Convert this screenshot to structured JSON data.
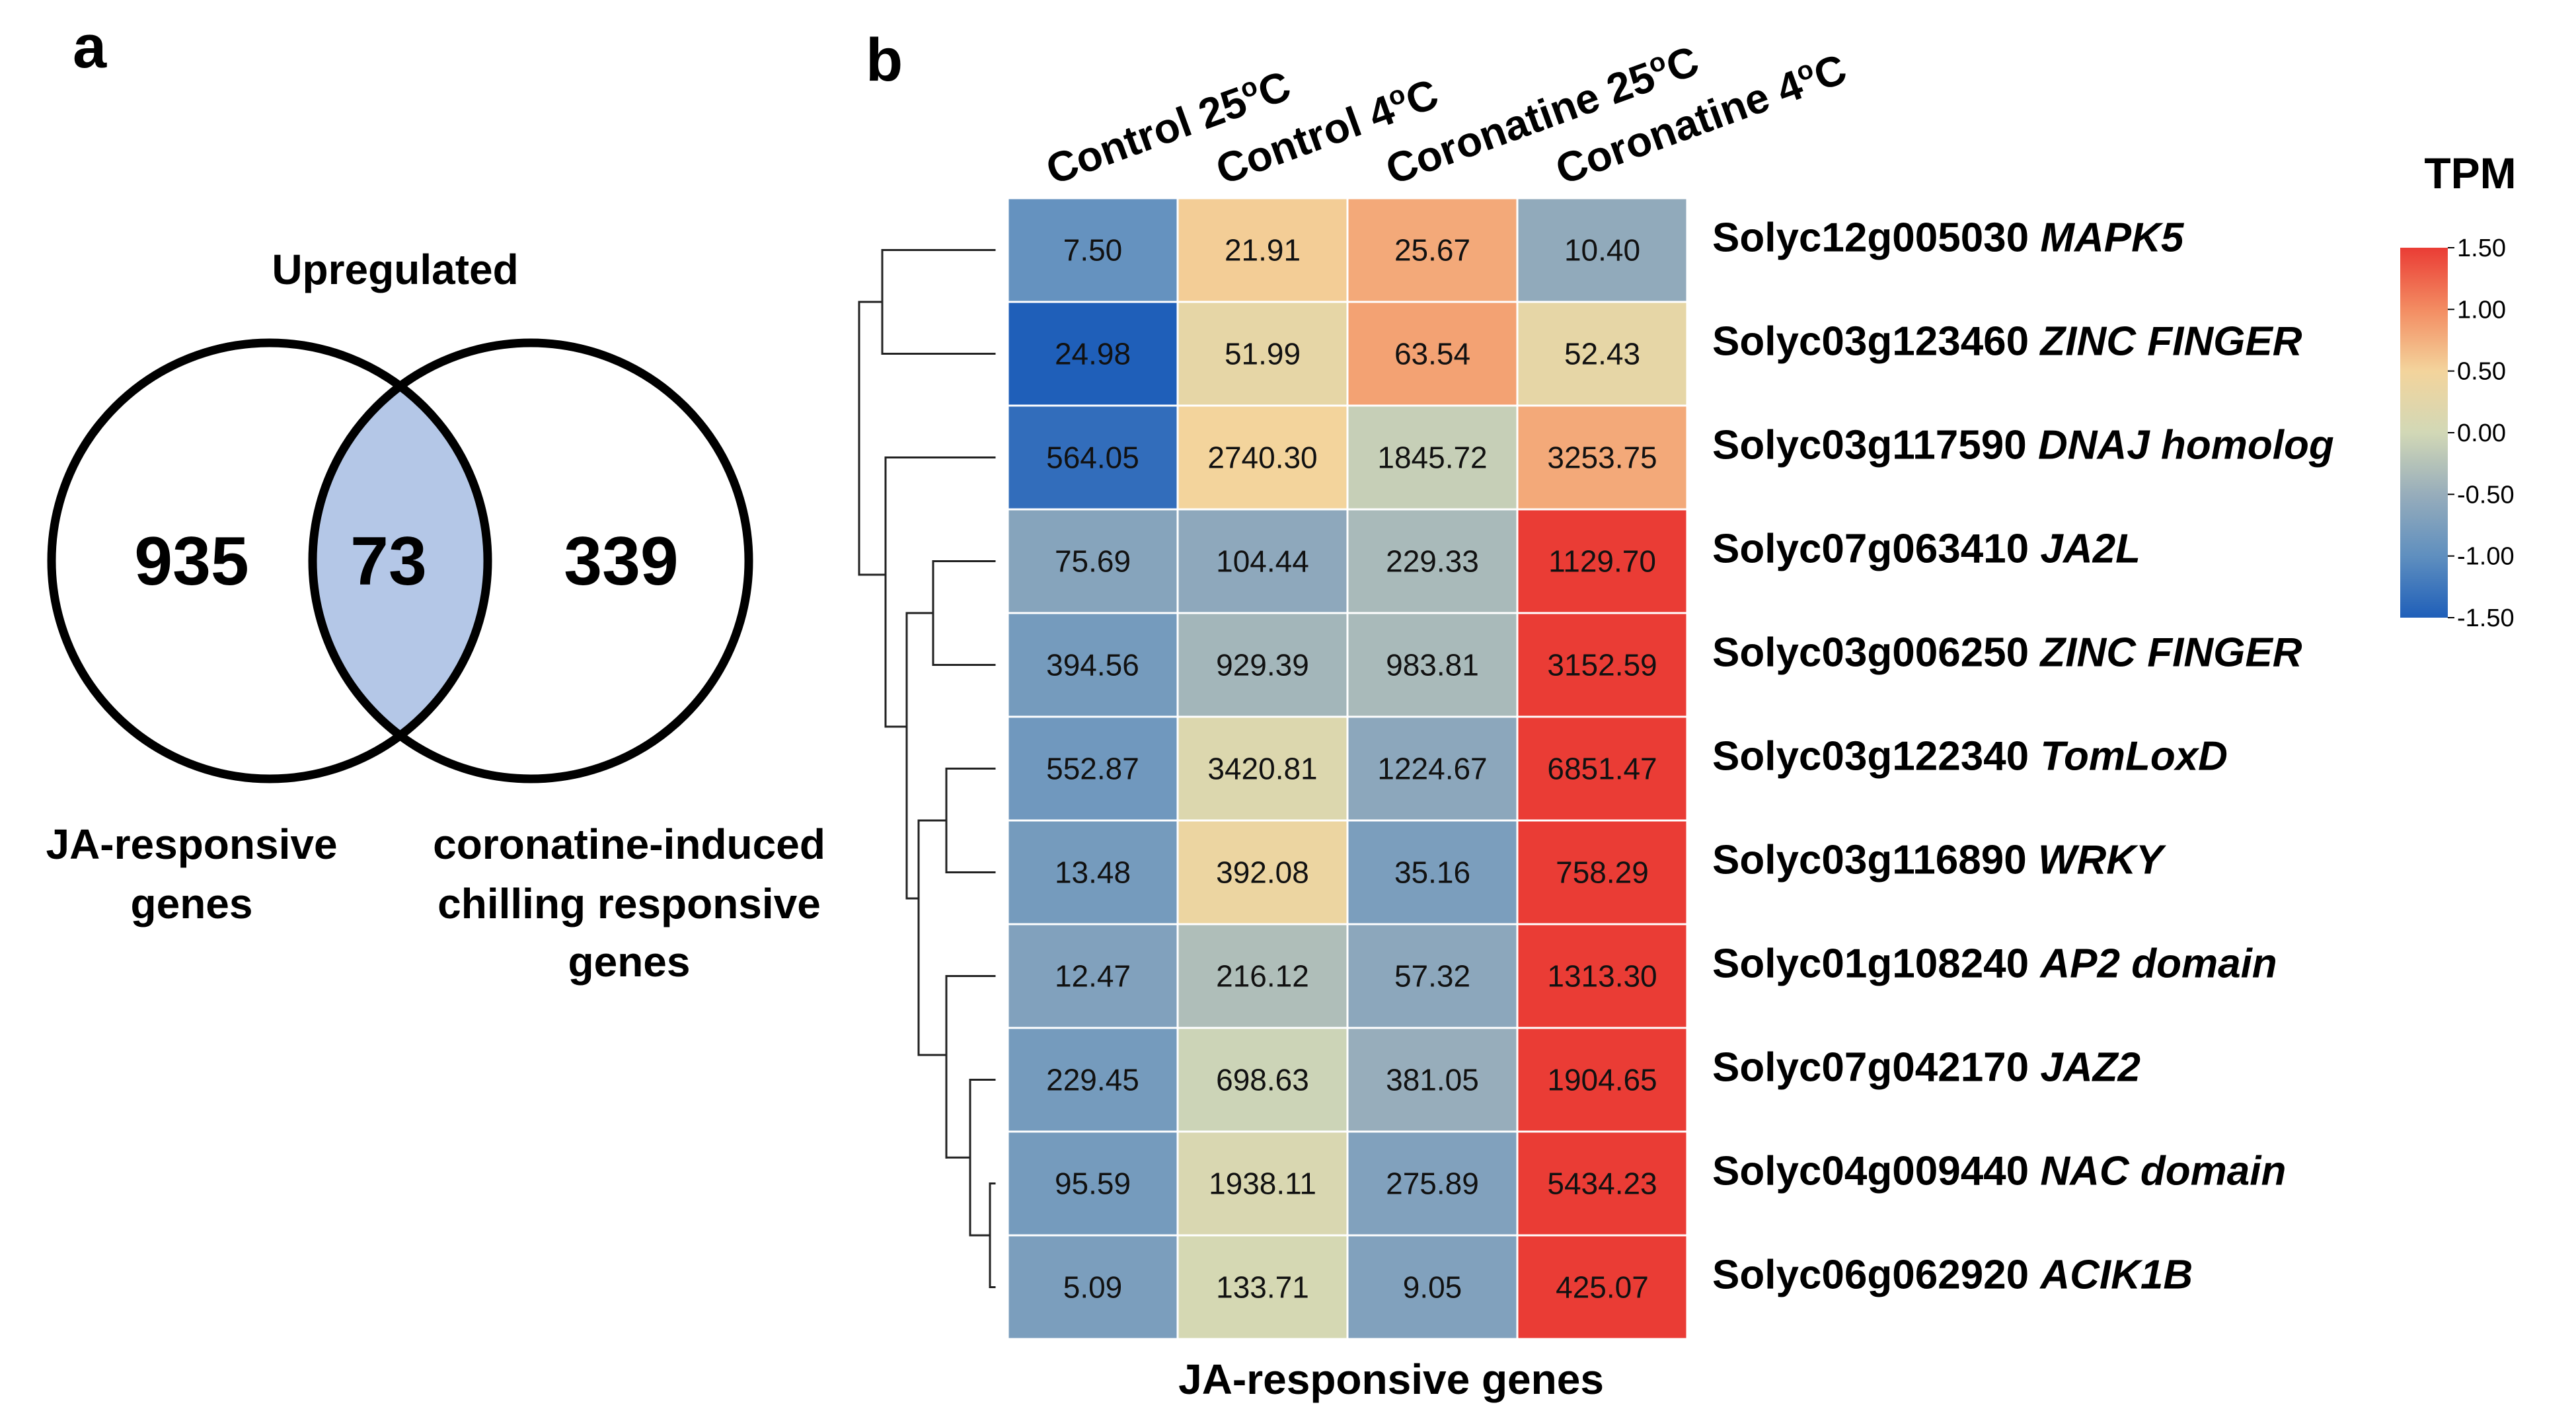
{
  "panel_a": {
    "letter": "a",
    "title": "Upregulated",
    "left_count": "935",
    "overlap_count": "73",
    "right_count": "339",
    "left_label": [
      "JA-responsive",
      "genes"
    ],
    "right_label": [
      "coronatine-induced",
      "chilling responsive",
      "genes"
    ],
    "overlap_color": "#b4c7e7"
  },
  "panel_b": {
    "letter": "b",
    "x_title": "JA-responsive genes",
    "legend_title": "TPM"
  },
  "chart_data": {
    "type": "heatmap",
    "title": "",
    "xlabel": "JA-responsive genes",
    "columns": [
      {
        "base": "Control 25",
        "sup": "o",
        "unit": "C"
      },
      {
        "base": "Control 4",
        "sup": "o",
        "unit": "C"
      },
      {
        "base": "Coronatine 25",
        "sup": "o",
        "unit": "C"
      },
      {
        "base": "Coronatine 4",
        "sup": "o",
        "unit": "C"
      }
    ],
    "rows": [
      {
        "id": "Solyc12g005030",
        "gene": "MAPK5",
        "values": [
          7.5,
          21.91,
          25.67,
          10.4
        ],
        "labels": [
          "7.50",
          "21.91",
          "25.67",
          "10.40"
        ],
        "z": [
          -0.95,
          0.55,
          0.8,
          -0.55
        ]
      },
      {
        "id": "Solyc03g123460",
        "gene": "ZINC FINGER",
        "values": [
          24.98,
          51.99,
          63.54,
          52.43
        ],
        "labels": [
          "24.98",
          "51.99",
          "63.54",
          "52.43"
        ],
        "z": [
          -1.5,
          0.3,
          0.85,
          0.3
        ]
      },
      {
        "id": "Solyc03g117590",
        "gene": "DNAJ homolog",
        "values": [
          564.05,
          2740.3,
          1845.72,
          3253.75
        ],
        "labels": [
          "564.05",
          "2740.30",
          "1845.72",
          "3253.75"
        ],
        "z": [
          -1.35,
          0.5,
          -0.1,
          0.8
        ]
      },
      {
        "id": "Solyc07g063410",
        "gene": "JA2L",
        "values": [
          75.69,
          104.44,
          229.33,
          1129.7
        ],
        "labels": [
          "75.69",
          "104.44",
          "229.33",
          "1129.70"
        ],
        "z": [
          -0.65,
          -0.58,
          -0.35,
          1.5
        ]
      },
      {
        "id": "Solyc03g006250",
        "gene": "ZINC FINGER",
        "values": [
          394.56,
          929.39,
          983.81,
          3152.59
        ],
        "labels": [
          "394.56",
          "929.39",
          "983.81",
          "3152.59"
        ],
        "z": [
          -0.8,
          -0.4,
          -0.35,
          1.5
        ]
      },
      {
        "id": "Solyc03g122340",
        "gene": "TomLoxD",
        "values": [
          552.87,
          3420.81,
          1224.67,
          6851.47
        ],
        "labels": [
          "552.87",
          "3420.81",
          "1224.67",
          "6851.47"
        ],
        "z": [
          -0.85,
          0.15,
          -0.6,
          1.5
        ]
      },
      {
        "id": "Solyc03g116890",
        "gene": "WRKY",
        "values": [
          13.48,
          392.08,
          35.16,
          758.29
        ],
        "labels": [
          "13.48",
          "392.08",
          "35.16",
          "758.29"
        ],
        "z": [
          -0.8,
          0.4,
          -0.75,
          1.5
        ]
      },
      {
        "id": "Solyc01g108240",
        "gene": "AP2 domain",
        "values": [
          12.47,
          216.12,
          57.32,
          1313.3
        ],
        "labels": [
          "12.47",
          "216.12",
          "57.32",
          "1313.30"
        ],
        "z": [
          -0.7,
          -0.3,
          -0.6,
          1.5
        ]
      },
      {
        "id": "Solyc07g042170",
        "gene": "JAZ2",
        "values": [
          229.45,
          698.63,
          381.05,
          1904.65
        ],
        "labels": [
          "229.45",
          "698.63",
          "381.05",
          "1904.65"
        ],
        "z": [
          -0.8,
          -0.05,
          -0.5,
          1.5
        ]
      },
      {
        "id": "Solyc04g009440",
        "gene": "NAC domain",
        "values": [
          95.59,
          1938.11,
          275.89,
          5434.23
        ],
        "labels": [
          "95.59",
          "1938.11",
          "275.89",
          "5434.23"
        ],
        "z": [
          -0.8,
          0.1,
          -0.7,
          1.5
        ]
      },
      {
        "id": "Solyc06g062920",
        "gene": "ACIK1B",
        "values": [
          5.09,
          133.71,
          9.05,
          425.07
        ],
        "labels": [
          "5.09",
          "133.71",
          "9.05",
          "425.07"
        ],
        "z": [
          -0.75,
          0.05,
          -0.7,
          1.5
        ]
      }
    ],
    "color_scale": {
      "range": [
        -1.5,
        1.5
      ],
      "ticks": [
        "1.50",
        "1.00",
        "0.50",
        "0.00",
        "-0.50",
        "-1.00",
        "-1.50"
      ],
      "tick_values": [
        1.5,
        1.0,
        0.5,
        0.0,
        -0.5,
        -1.0,
        -1.5
      ],
      "stops": [
        {
          "v": -1.5,
          "color": "#1f5fb9"
        },
        {
          "v": -1.0,
          "color": "#5f8fbf"
        },
        {
          "v": -0.5,
          "color": "#97adbb"
        },
        {
          "v": 0.0,
          "color": "#d2d8b6"
        },
        {
          "v": 0.5,
          "color": "#f3d49c"
        },
        {
          "v": 1.0,
          "color": "#f38c62"
        },
        {
          "v": 1.5,
          "color": "#ea3c35"
        }
      ]
    },
    "dendrogram_order": [
      0,
      1,
      2,
      3,
      4,
      5,
      6,
      7,
      8,
      9,
      10
    ]
  }
}
